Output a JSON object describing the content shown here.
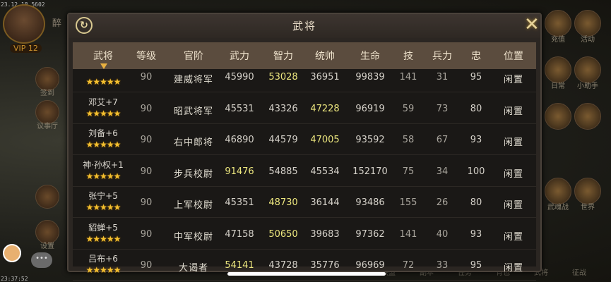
{
  "status": {
    "top_timestamp": "23.12.18.5602",
    "bottom_timestamp": "23:37:52"
  },
  "player": {
    "name_fragment": "醉",
    "vip": "VIP 12"
  },
  "left_menu": [
    {
      "label": "签到",
      "icon": "sign-in-icon"
    },
    {
      "label": "议事厅",
      "icon": "council-hall-icon"
    },
    {
      "label": "",
      "icon": "mail-icon"
    },
    {
      "label": "设置",
      "icon": "settings-gear-icon"
    }
  ],
  "right_menu": [
    {
      "label": "充值",
      "icon": "recharge-icon"
    },
    {
      "label": "活动",
      "icon": "gift-box-icon"
    },
    {
      "label": "日常",
      "icon": "daily-icon"
    },
    {
      "label": "小助手",
      "icon": "helper-scroll-icon"
    },
    {
      "label": "",
      "icon": "quest-icon"
    },
    {
      "label": "",
      "icon": "treasure-icon"
    },
    {
      "label": "武魂战",
      "icon": "soul-battle-icon"
    },
    {
      "label": "世界",
      "icon": "world-icon"
    }
  ],
  "bottom_menu": [
    "联盟",
    "副本",
    "任务",
    "背包",
    "武将",
    "征战"
  ],
  "dialog": {
    "title": "武将",
    "refresh_icon": "refresh-icon",
    "close_icon": "close-x-icon",
    "columns": [
      "武将",
      "等级",
      "官阶",
      "武力",
      "智力",
      "统帅",
      "生命",
      "技",
      "兵力",
      "忠",
      "位置"
    ],
    "sort_column": "武将",
    "highlight_color": "#ece67e",
    "rows": [
      {
        "name": "",
        "stars": 5,
        "level": "90",
        "rank": "建威将军",
        "force": "45990",
        "intellect": "53028",
        "command": "36951",
        "hp": "99839",
        "skill": "141",
        "troops": "31",
        "loyalty": "95",
        "position": "闲置",
        "highlight": [
          "intellect"
        ]
      },
      {
        "name": "邓艾+7",
        "stars": 5,
        "level": "90",
        "rank": "昭武将军",
        "force": "45531",
        "intellect": "43326",
        "command": "47228",
        "hp": "96919",
        "skill": "59",
        "troops": "73",
        "loyalty": "80",
        "position": "闲置",
        "highlight": [
          "command"
        ]
      },
      {
        "name": "刘备+6",
        "stars": 5,
        "level": "90",
        "rank": "右中郎将",
        "force": "46890",
        "intellect": "44579",
        "command": "47005",
        "hp": "93592",
        "skill": "58",
        "troops": "67",
        "loyalty": "93",
        "position": "闲置",
        "highlight": [
          "command"
        ]
      },
      {
        "name": "神·孙权+1",
        "stars": 5,
        "level": "90",
        "rank": "步兵校尉",
        "force": "91476",
        "intellect": "54885",
        "command": "45534",
        "hp": "152170",
        "skill": "75",
        "troops": "34",
        "loyalty": "100",
        "position": "闲置",
        "highlight": [
          "force"
        ]
      },
      {
        "name": "张宁+5",
        "stars": 5,
        "level": "90",
        "rank": "上军校尉",
        "force": "45351",
        "intellect": "48730",
        "command": "36144",
        "hp": "93486",
        "skill": "155",
        "troops": "26",
        "loyalty": "80",
        "position": "闲置",
        "highlight": [
          "intellect"
        ]
      },
      {
        "name": "貂蝉+5",
        "stars": 5,
        "level": "90",
        "rank": "中军校尉",
        "force": "47158",
        "intellect": "50650",
        "command": "39683",
        "hp": "97362",
        "skill": "141",
        "troops": "40",
        "loyalty": "93",
        "position": "闲置",
        "highlight": [
          "intellect"
        ]
      },
      {
        "name": "吕布+6",
        "stars": 5,
        "level": "90",
        "rank": "大谒者",
        "force": "54141",
        "intellect": "43728",
        "command": "35776",
        "hp": "96969",
        "skill": "72",
        "troops": "33",
        "loyalty": "95",
        "position": "闲置",
        "highlight": [
          "force"
        ]
      }
    ]
  }
}
